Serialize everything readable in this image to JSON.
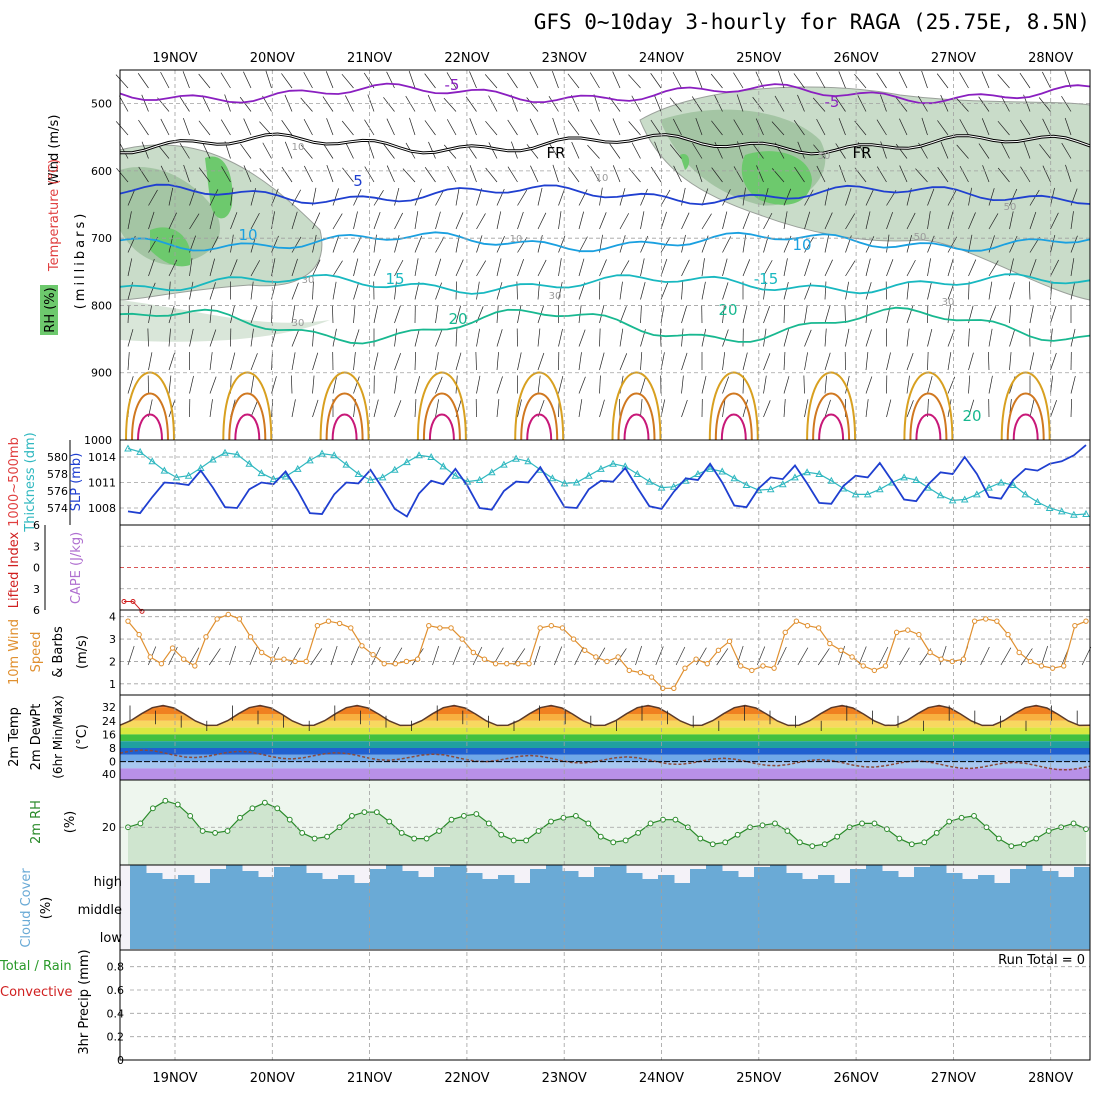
{
  "title": "GFS 0~10day 3-hourly for RAGA (25.75E, 8.5N)",
  "dates": [
    "19NOV",
    "20NOV",
    "21NOV",
    "22NOV",
    "23NOV",
    "24NOV",
    "25NOV",
    "26NOV",
    "27NOV",
    "28NOV"
  ],
  "colors": {
    "grid": "#a0a0a0",
    "rh_fill": "#c9dcc9",
    "rh_dark": "#9bbf9b",
    "rh_green": "#6dc96d",
    "temp_m5": "#8a1fc0",
    "temp_freeze": "#000000",
    "temp_5": "#1f3fd0",
    "temp_10": "#1aa0e0",
    "temp_15": "#18b8c0",
    "temp_20": "#18b890",
    "temp_25": "#d8a020",
    "temp_30": "#d07820",
    "temp_35": "#c81878",
    "slp": "#1f3fd0",
    "thickness": "#30b8c0",
    "lifted": "#d02020",
    "wind10m": "#e09030",
    "temp2m": "#5a3a2a",
    "dewpt": "#8a4a3a",
    "rh2m": "#2a8a2a",
    "rh2m_fill": "#cfe5cf",
    "cloud": "#6aaad6",
    "cloud_bg": "#f4f2f8"
  },
  "panel_titles": {
    "upper": [
      "Wind (m/s)",
      "Temperature (°C)",
      "RH (%)"
    ],
    "upper_unit": "(millibars)",
    "thick": [
      "1000~500mb",
      "Thickness (dm)"
    ],
    "slp": "SLP (mb)",
    "lifted": "Lifted Index",
    "cape": "CAPE (J/kg)",
    "wind10": [
      "10m Wind",
      "Speed",
      "& Barbs"
    ],
    "wind10_unit": "(m/s)",
    "temp2m": [
      "2m Temp",
      "2m DewPt",
      "(6hr Min/Max)"
    ],
    "temp_unit": "(°C)",
    "rh2m": "2m RH",
    "rh_unit": "(%)",
    "cloud": "Cloud Cover",
    "cloud_unit": "(%)",
    "precip": [
      "Total / Rain",
      "Convective"
    ],
    "precip_title": "3hr Precip (mm)"
  },
  "axis_labels": {
    "pressure": [
      "500",
      "600",
      "700",
      "800",
      "900",
      "1000"
    ],
    "thickness": [
      "580",
      "578",
      "576",
      "574"
    ],
    "slp": [
      "1014",
      "1011",
      "1008"
    ],
    "lifted": [
      "-6",
      "-3",
      "0",
      "3",
      "6"
    ],
    "wind10": [
      "4",
      "3",
      "2",
      "1"
    ],
    "temp2m": [
      "32",
      "24",
      "16",
      "8",
      "0",
      "-40"
    ],
    "rh2m": [
      "20"
    ],
    "cloud": [
      "high",
      "middle",
      "low"
    ],
    "precip": [
      "0.8",
      "0.6",
      "0.4",
      "0.2",
      "0"
    ]
  },
  "contour_labels": [
    "-5",
    "-5",
    "FR",
    "FR",
    "5",
    "10",
    "10",
    "15",
    "-15",
    "20",
    "20",
    "20",
    "10",
    "10",
    "10",
    "30",
    "30",
    "30",
    "30",
    "50",
    "50",
    "50"
  ],
  "run_total": "Run Total = 0",
  "chart_data": [
    {
      "type": "line",
      "name": "upper",
      "x": "time (3-hourly, 18NOV 12Z to 28NOV 06Z)",
      "ylabel": "millibars",
      "ylim": [
        450,
        1000
      ],
      "isotherms": [
        {
          "label": "-5",
          "level_mb": 485
        },
        {
          "label": "FR",
          "level_mb": 560
        },
        {
          "label": "5",
          "level_mb": 635
        },
        {
          "label": "10",
          "level_mb": 705
        },
        {
          "label": "15",
          "level_mb": 768
        },
        {
          "label": "20",
          "level_mb": 830
        }
      ]
    },
    {
      "type": "line",
      "name": "thickness_slp",
      "thickness_ylim": [
        572,
        582
      ],
      "slp_ylim": [
        1006,
        1016
      ],
      "thickness_values": [
        581,
        580.6,
        579.5,
        578.4,
        577.6,
        577.8,
        578.7,
        579.7,
        580.5,
        580.3,
        579.2,
        578.1,
        577.4,
        577.7,
        578.6,
        579.6,
        580.4,
        580.2,
        579.1,
        578.0,
        577.3,
        577.6,
        578.5,
        579.4,
        580.2,
        580.0,
        578.9,
        577.8,
        577.1,
        577.3,
        578.2,
        579.1,
        579.8,
        579.5,
        578.5,
        577.5,
        576.9,
        577.0,
        577.8,
        578.6,
        579.2,
        578.9,
        578.0,
        577.1,
        576.4,
        576.5,
        577.2,
        578.0,
        578.6,
        578.3,
        577.5,
        576.7,
        576.1,
        576.2,
        576.8,
        577.6,
        578.2,
        578.0,
        577.2,
        576.3,
        575.6,
        575.6,
        576.2,
        577.0,
        577.6,
        577.3,
        576.4,
        575.5,
        574.9,
        575.0,
        575.6,
        576.4,
        577.0,
        576.7,
        575.6,
        574.7,
        574.0,
        573.6,
        573.2,
        573.3
      ],
      "slp_values": [
        1007.6,
        1007.4,
        1009.3,
        1011.0,
        1010.9,
        1010.7,
        1012.4,
        1010.4,
        1008.1,
        1008.0,
        1010.2,
        1011.0,
        1010.8,
        1012.3,
        1010.0,
        1007.4,
        1007.3,
        1009.6,
        1011.0,
        1010.9,
        1012.5,
        1010.3,
        1007.9,
        1007.0,
        1009.7,
        1011.2,
        1010.8,
        1012.6,
        1010.6,
        1008.0,
        1007.8,
        1010.0,
        1011.1,
        1011.0,
        1012.8,
        1010.5,
        1008.1,
        1008.0,
        1010.2,
        1011.2,
        1011.1,
        1012.7,
        1010.4,
        1008.2,
        1007.9,
        1009.9,
        1011.5,
        1011.3,
        1013.2,
        1011.0,
        1008.3,
        1008.1,
        1010.3,
        1011.6,
        1011.4,
        1013.0,
        1010.9,
        1008.6,
        1008.5,
        1010.6,
        1011.8,
        1011.6,
        1013.3,
        1011.2,
        1009.0,
        1008.8,
        1010.8,
        1012.2,
        1012.0,
        1014.0,
        1012.0,
        1009.3,
        1009.1,
        1011.3,
        1012.6,
        1012.4,
        1013.2,
        1013.5,
        1014.2,
        1015.4
      ]
    },
    {
      "type": "line",
      "name": "lifted_index",
      "ylim": [
        -6,
        6
      ],
      "values": [
        4.8,
        4.8,
        6.2
      ]
    },
    {
      "type": "line",
      "name": "wind10m",
      "ylim": [
        0.5,
        4.3
      ],
      "values": [
        3.8,
        3.2,
        2.2,
        1.9,
        2.6,
        2.1,
        1.8,
        3.1,
        3.9,
        4.1,
        3.9,
        3.1,
        2.4,
        2.1,
        2.1,
        2.0,
        2.0,
        3.6,
        3.8,
        3.7,
        3.5,
        2.7,
        2.3,
        1.9,
        1.9,
        2.0,
        2.1,
        3.6,
        3.5,
        3.5,
        3.0,
        2.4,
        2.1,
        1.9,
        1.9,
        1.9,
        1.9,
        3.5,
        3.6,
        3.5,
        3.0,
        2.5,
        2.2,
        2.0,
        2.2,
        1.6,
        1.5,
        1.3,
        0.8,
        0.8,
        1.7,
        2.1,
        1.9,
        2.5,
        2.9,
        1.8,
        1.6,
        1.8,
        1.7,
        3.3,
        3.8,
        3.6,
        3.5,
        2.8,
        2.5,
        2.2,
        1.8,
        1.6,
        1.8,
        3.3,
        3.4,
        3.2,
        2.4,
        2.1,
        2.0,
        2.1,
        3.8,
        3.9,
        3.8,
        3.2,
        2.4,
        2.0,
        1.8,
        1.7,
        1.8,
        3.6,
        3.8
      ],
      "y_tick_range": [
        1,
        4
      ]
    },
    {
      "type": "area",
      "name": "temp2m",
      "ylim": [
        -45,
        40
      ],
      "min_max_range": [
        20,
        34
      ],
      "dewpoint_range": [
        -5,
        10
      ]
    },
    {
      "type": "area",
      "name": "rh2m",
      "ylim": [
        0,
        45
      ],
      "values": [
        20,
        22,
        30,
        34,
        32,
        26,
        18,
        17,
        18,
        25,
        30,
        33,
        30,
        24,
        17,
        14,
        15,
        20,
        26,
        28,
        28,
        23,
        17,
        14,
        14,
        18,
        24,
        26,
        27,
        22,
        16,
        13,
        13,
        18,
        23,
        25,
        26,
        22,
        15,
        12,
        13,
        17,
        22,
        24,
        24,
        20,
        14,
        11,
        12,
        16,
        20,
        21,
        22,
        18,
        12,
        10,
        11,
        15,
        20,
        22,
        22,
        19,
        14,
        11,
        12,
        17,
        23,
        25,
        26,
        20,
        14,
        10,
        11,
        14,
        18,
        20,
        22,
        19
      ],
      "y_tick": 20
    },
    {
      "type": "area",
      "name": "cloud_cover",
      "layers": [
        "high",
        "middle",
        "low"
      ],
      "high_pct_approx": 70,
      "middle_pct": 100,
      "low_pct": 100
    },
    {
      "type": "bar",
      "name": "precip_3hr",
      "ylim": [
        0,
        0.9
      ],
      "values": [],
      "run_total": 0
    }
  ]
}
